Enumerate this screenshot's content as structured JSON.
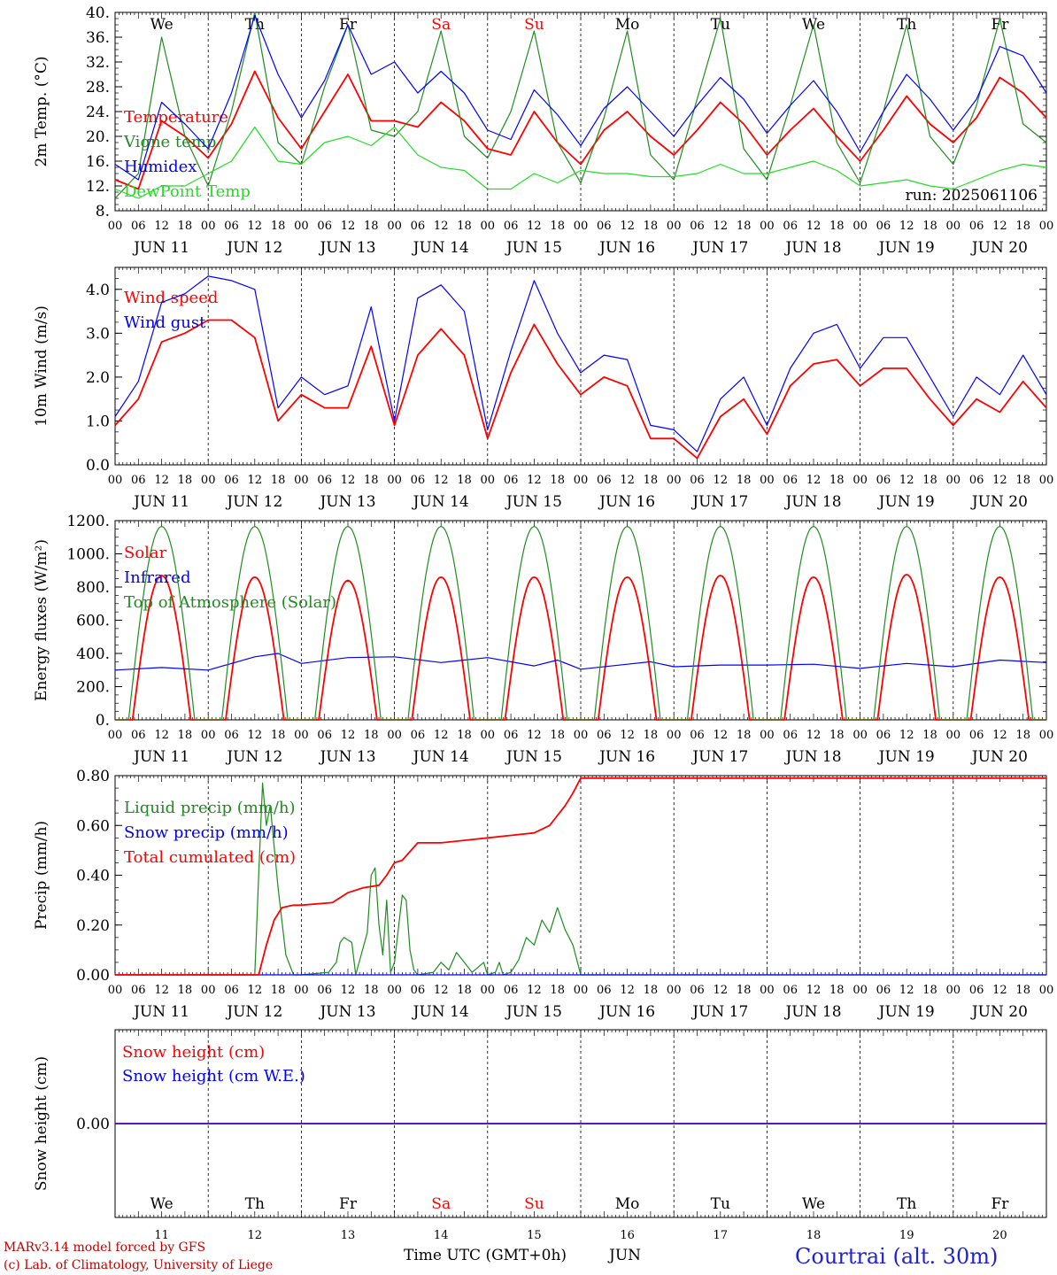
{
  "colors": {
    "red": "#ff0000",
    "green": "#1e8c1e",
    "blue": "#0000ff",
    "light_green": "#22dd22",
    "weekend": "#ff0000",
    "weekday": "#000000"
  },
  "days": [
    {
      "dow": "We",
      "date": "JUN 11",
      "num": "11",
      "weekend": false
    },
    {
      "dow": "Th",
      "date": "JUN 12",
      "num": "12",
      "weekend": false
    },
    {
      "dow": "Fr",
      "date": "JUN 13",
      "num": "13",
      "weekend": false
    },
    {
      "dow": "Sa",
      "date": "JUN 14",
      "num": "14",
      "weekend": true
    },
    {
      "dow": "Su",
      "date": "JUN 15",
      "num": "15",
      "weekend": true
    },
    {
      "dow": "Mo",
      "date": "JUN 16",
      "num": "16",
      "weekend": false
    },
    {
      "dow": "Tu",
      "date": "JUN 17",
      "num": "17",
      "weekend": false
    },
    {
      "dow": "We",
      "date": "JUN 18",
      "num": "18",
      "weekend": false
    },
    {
      "dow": "Th",
      "date": "JUN 19",
      "num": "19",
      "weekend": false
    },
    {
      "dow": "Fr",
      "date": "JUN 20",
      "num": "20",
      "weekend": false
    }
  ],
  "hour_labels": [
    "00",
    "06",
    "12",
    "18"
  ],
  "hour_end_label": "00",
  "run_label": "run: 2025061106",
  "xaxis_title": "Time UTC (GMT+0h)",
  "xaxis_month": "JUN",
  "footer": {
    "line1": "MARv3.14 model forced by GFS",
    "line2": "(c) Lab. of Climatology, University of Liege",
    "station": "Courtrai (alt. 30m)"
  },
  "chart_data": [
    {
      "type": "line",
      "ylabel": "2m Temp. (°C)",
      "ylim": [
        8,
        40
      ],
      "yticks": [
        8,
        12,
        16,
        20,
        24,
        28,
        32,
        36,
        40
      ],
      "ytick_labels": [
        "8.",
        "12.",
        "16.",
        "20.",
        "24.",
        "28.",
        "32.",
        "36.",
        "40."
      ],
      "x_unit": "hours since 2025-06-11 00 UTC",
      "series": [
        {
          "name": "Temperature",
          "color": "red",
          "x": [
            0,
            6,
            12,
            18,
            24,
            30,
            36,
            42,
            48,
            54,
            60,
            66,
            72,
            78,
            84,
            90,
            96,
            102,
            108,
            114,
            120,
            126,
            132,
            138,
            144,
            150,
            156,
            162,
            168,
            174,
            180,
            186,
            192,
            198,
            204,
            210,
            216,
            222,
            228,
            234,
            240
          ],
          "values": [
            13,
            11.5,
            22.5,
            20,
            16.5,
            22,
            30.5,
            23,
            18,
            24,
            30,
            22.5,
            22.5,
            21.5,
            25.5,
            22.5,
            18,
            17,
            24,
            19,
            15.5,
            21,
            24,
            20,
            17,
            21,
            25.5,
            22,
            17,
            21,
            24.5,
            20,
            16,
            21,
            26.5,
            22,
            19,
            23,
            29.5,
            27,
            23
          ]
        },
        {
          "name": "Vigne temp",
          "color": "green",
          "x": [
            0,
            6,
            12,
            18,
            24,
            30,
            36,
            42,
            48,
            54,
            60,
            66,
            72,
            78,
            84,
            90,
            96,
            102,
            108,
            114,
            120,
            126,
            132,
            138,
            144,
            150,
            156,
            162,
            168,
            174,
            180,
            186,
            192,
            198,
            204,
            210,
            216,
            222,
            228,
            234,
            240
          ],
          "values": [
            10,
            14,
            36,
            20,
            12,
            24,
            40,
            19,
            15.5,
            28,
            38,
            21,
            20,
            24,
            37,
            20,
            16.5,
            24,
            37,
            19,
            12.5,
            23,
            37,
            17,
            13,
            26,
            39,
            18,
            13,
            25,
            38,
            19,
            12.5,
            24,
            38,
            20,
            15.5,
            25,
            39,
            22,
            19
          ]
        },
        {
          "name": "Humidex",
          "color": "blue",
          "x": [
            0,
            6,
            12,
            18,
            24,
            30,
            36,
            42,
            48,
            54,
            60,
            66,
            72,
            78,
            84,
            90,
            96,
            102,
            108,
            114,
            120,
            126,
            132,
            138,
            144,
            150,
            156,
            162,
            168,
            174,
            180,
            186,
            192,
            198,
            204,
            210,
            216,
            222,
            228,
            234,
            240
          ],
          "values": [
            15.5,
            13,
            25.5,
            22,
            18,
            27,
            39.5,
            30,
            23,
            29,
            38,
            30,
            32,
            27,
            30.5,
            27,
            21,
            19.5,
            27.5,
            23.5,
            18.5,
            24.5,
            28,
            24,
            20,
            25,
            29.5,
            26,
            20.5,
            25,
            29,
            24,
            17.5,
            24,
            30,
            26,
            21,
            26,
            34.5,
            33,
            27
          ]
        },
        {
          "name": "DewPoint Temp",
          "color": "light_green",
          "x": [
            0,
            6,
            12,
            18,
            24,
            30,
            36,
            42,
            48,
            54,
            60,
            66,
            72,
            78,
            84,
            90,
            96,
            102,
            108,
            114,
            120,
            126,
            132,
            138,
            144,
            150,
            156,
            162,
            168,
            174,
            180,
            186,
            192,
            198,
            204,
            210,
            216,
            222,
            228,
            234,
            240
          ],
          "values": [
            11.5,
            10,
            12,
            12,
            14,
            16,
            21.5,
            16,
            15.5,
            19,
            20,
            18.5,
            21.5,
            17,
            15,
            14.5,
            11.5,
            11.5,
            14,
            12.5,
            14.5,
            14,
            14,
            13.5,
            13.5,
            14,
            15.5,
            14,
            14,
            15,
            16,
            14.5,
            12,
            12.5,
            13,
            12,
            11.5,
            13,
            14.5,
            15.5,
            15
          ]
        }
      ]
    },
    {
      "type": "line",
      "ylabel": "10m Wind (m/s)",
      "ylim": [
        0,
        4.5
      ],
      "yticks": [
        0,
        1,
        2,
        3,
        4
      ],
      "ytick_labels": [
        "0.0",
        "1.0",
        "2.0",
        "3.0",
        "4.0"
      ],
      "x_unit": "hours since 2025-06-11 00 UTC",
      "series": [
        {
          "name": "Wind speed",
          "color": "red",
          "x": [
            0,
            6,
            12,
            18,
            24,
            30,
            36,
            42,
            48,
            54,
            60,
            66,
            72,
            78,
            84,
            90,
            96,
            102,
            108,
            114,
            120,
            126,
            132,
            138,
            144,
            150,
            156,
            162,
            168,
            174,
            180,
            186,
            192,
            198,
            204,
            210,
            216,
            222,
            228,
            234,
            240
          ],
          "values": [
            0.9,
            1.5,
            2.8,
            3.0,
            3.3,
            3.3,
            2.9,
            1.0,
            1.6,
            1.3,
            1.3,
            2.7,
            0.9,
            2.5,
            3.1,
            2.5,
            0.6,
            2.1,
            3.2,
            2.3,
            1.6,
            2.0,
            1.8,
            0.6,
            0.6,
            0.15,
            1.1,
            1.5,
            0.7,
            1.8,
            2.3,
            2.4,
            1.8,
            2.2,
            2.2,
            1.5,
            0.9,
            1.5,
            1.2,
            1.9,
            1.3
          ]
        },
        {
          "name": "Wind gust",
          "color": "blue",
          "x": [
            0,
            6,
            12,
            18,
            24,
            30,
            36,
            42,
            48,
            54,
            60,
            66,
            72,
            78,
            84,
            90,
            96,
            102,
            108,
            114,
            120,
            126,
            132,
            138,
            144,
            150,
            156,
            162,
            168,
            174,
            180,
            186,
            192,
            198,
            204,
            210,
            216,
            222,
            228,
            234,
            240
          ],
          "values": [
            1.1,
            1.9,
            3.7,
            3.9,
            4.3,
            4.2,
            4.0,
            1.3,
            2.0,
            1.6,
            1.8,
            3.6,
            1.0,
            3.8,
            4.1,
            3.5,
            0.8,
            2.6,
            4.2,
            3.0,
            2.1,
            2.5,
            2.4,
            0.9,
            0.8,
            0.3,
            1.5,
            2.0,
            0.9,
            2.2,
            3.0,
            3.2,
            2.2,
            2.9,
            2.9,
            2.0,
            1.1,
            2.0,
            1.6,
            2.5,
            1.6
          ]
        }
      ]
    },
    {
      "type": "line",
      "ylabel": "Energy fluxes (W/m²)",
      "ylim": [
        0,
        1200
      ],
      "yticks": [
        0,
        200,
        400,
        600,
        800,
        1000,
        1200
      ],
      "ytick_labels": [
        "0.",
        "200.",
        "400.",
        "600.",
        "800.",
        "1000.",
        "1200."
      ],
      "x_unit": "hours since 2025-06-11 00 UTC",
      "series": [
        {
          "name": "Solar",
          "color": "red",
          "day_peaks": [
            870,
            860,
            840,
            860,
            860,
            860,
            870,
            860,
            875,
            860
          ]
        },
        {
          "name": "Infrared",
          "color": "blue",
          "x": [
            0,
            12,
            24,
            36,
            42,
            48,
            60,
            72,
            84,
            96,
            108,
            114,
            120,
            132,
            138,
            144,
            156,
            168,
            180,
            192,
            204,
            216,
            228,
            240
          ],
          "values": [
            300,
            315,
            300,
            380,
            400,
            340,
            375,
            380,
            345,
            375,
            325,
            360,
            305,
            335,
            350,
            320,
            330,
            330,
            335,
            310,
            340,
            320,
            360,
            345
          ]
        },
        {
          "name": "Top of Atmosphere (Solar)",
          "color": "green",
          "day_peaks": [
            1165,
            1165,
            1165,
            1165,
            1165,
            1165,
            1165,
            1165,
            1165,
            1165
          ]
        }
      ]
    },
    {
      "type": "line",
      "ylabel": "Precip (mm/h)",
      "ylim": [
        0,
        0.8
      ],
      "yticks": [
        0,
        0.2,
        0.4,
        0.6,
        0.8
      ],
      "ytick_labels": [
        "0.00",
        "0.20",
        "0.40",
        "0.60",
        "0.80"
      ],
      "x_unit": "hours since 2025-06-11 00 UTC",
      "series": [
        {
          "name": "Liquid precip (mm/h)",
          "color": "green",
          "x": [
            0,
            36,
            37,
            38,
            39,
            40,
            42,
            44,
            46,
            48,
            55,
            57,
            58,
            59,
            61,
            62,
            65,
            66,
            67,
            68,
            69,
            70,
            71,
            72,
            74,
            75,
            76,
            77,
            78,
            82,
            84,
            86,
            88,
            90,
            92,
            95,
            96,
            98,
            99,
            100,
            102,
            104,
            106,
            108,
            110,
            112,
            114,
            116,
            118,
            120,
            240
          ],
          "values": [
            0,
            0,
            0.4,
            0.77,
            0.6,
            0.68,
            0.35,
            0.08,
            0,
            0,
            0.01,
            0.05,
            0.13,
            0.15,
            0.13,
            0,
            0.17,
            0.4,
            0.43,
            0.2,
            0.08,
            0.3,
            0.01,
            0.05,
            0.32,
            0.3,
            0.1,
            0.02,
            0,
            0.01,
            0.05,
            0.02,
            0.09,
            0.05,
            0.01,
            0.05,
            0,
            0.01,
            0.05,
            0,
            0.01,
            0.06,
            0.15,
            0.12,
            0.22,
            0.17,
            0.27,
            0.18,
            0.12,
            0,
            0
          ]
        },
        {
          "name": "Snow precip (mm/h)",
          "color": "blue",
          "x": [
            0,
            240
          ],
          "values": [
            0,
            0
          ]
        },
        {
          "name": "Total cumulated (cm)",
          "color": "red",
          "x": [
            0,
            37,
            39,
            41,
            43,
            46,
            48,
            56,
            60,
            64,
            68,
            70,
            72,
            74,
            78,
            84,
            90,
            96,
            102,
            108,
            112,
            114,
            116,
            118,
            120,
            240
          ],
          "values": [
            0,
            0,
            0.12,
            0.22,
            0.27,
            0.28,
            0.28,
            0.29,
            0.33,
            0.35,
            0.36,
            0.4,
            0.45,
            0.46,
            0.53,
            0.53,
            0.54,
            0.55,
            0.56,
            0.57,
            0.6,
            0.64,
            0.68,
            0.73,
            0.79,
            0.79
          ]
        }
      ]
    },
    {
      "type": "line",
      "ylabel": "Snow height (cm)",
      "ylim": [
        -1,
        1
      ],
      "yticks": [
        0
      ],
      "ytick_labels": [
        "0.00"
      ],
      "x_unit": "hours since 2025-06-11 00 UTC",
      "series": [
        {
          "name": "Snow height (cm)",
          "color": "red",
          "x": [
            0,
            240
          ],
          "values": [
            0,
            0
          ]
        },
        {
          "name": "Snow height (cm W.E.)",
          "color": "blue",
          "x": [
            0,
            240
          ],
          "values": [
            0,
            0
          ]
        }
      ]
    }
  ]
}
